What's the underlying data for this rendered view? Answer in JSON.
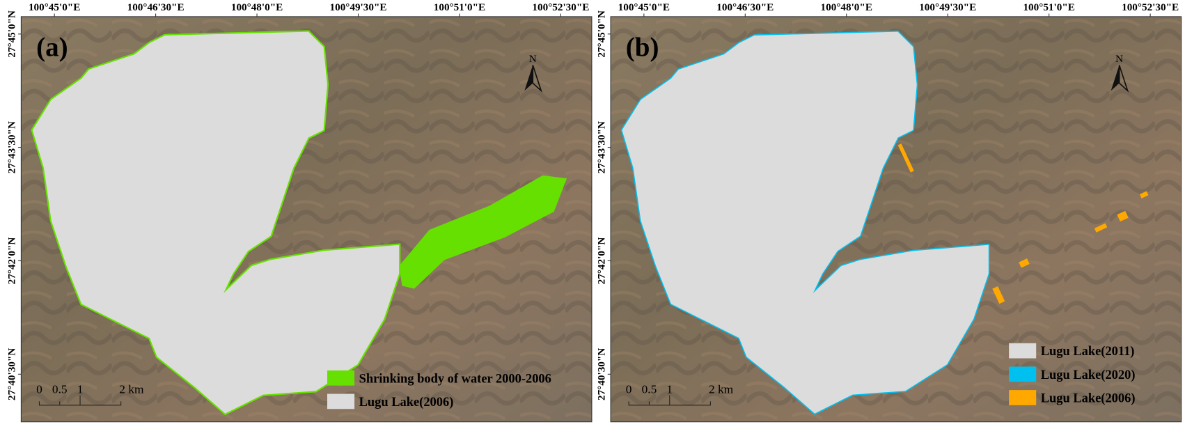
{
  "panels": [
    {
      "label": "(a)",
      "x_labels": [
        "100°45'0\"E",
        "100°46'30\"E",
        "100°48'0\"E",
        "100°49'30\"E",
        "100°51'0\"E",
        "100°52'30\"E"
      ],
      "y_labels": [
        "27°45'0\"N",
        "27°43'30\"N",
        "27°42'0\"N",
        "27°40'30\"N"
      ],
      "north": "N",
      "scale_labels": [
        "0",
        "0.5",
        "1",
        "2 km"
      ],
      "legend": [
        {
          "name": "Shrinking body of water 2000-2006",
          "color": "#66e000"
        },
        {
          "name": "Lugu Lake(2006)",
          "color": "#dcdcdc"
        }
      ]
    },
    {
      "label": "(b)",
      "x_labels": [
        "100°45'0\"E",
        "100°46'30\"E",
        "100°48'0\"E",
        "100°49'30\"E",
        "100°51'0\"E",
        "100°52'30\"E"
      ],
      "y_labels": [
        "27°45'0\"N",
        "27°43'30\"N",
        "27°42'0\"N",
        "27°40'30\"N"
      ],
      "north": "N",
      "scale_labels": [
        "0",
        "0.5",
        "1",
        "2 km"
      ],
      "legend": [
        {
          "name": "Lugu Lake(2011)",
          "color": "#dcdcdc"
        },
        {
          "name": "Lugu Lake(2020)",
          "color": "#00c0f0"
        },
        {
          "name": "Lugu Lake(2006)",
          "color": "#ffa800"
        }
      ]
    }
  ]
}
